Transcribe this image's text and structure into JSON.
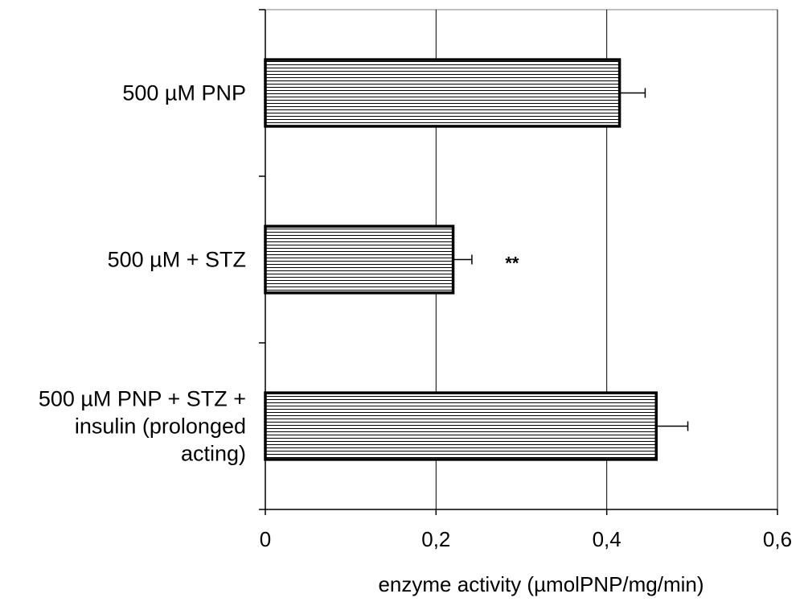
{
  "chart_data": {
    "type": "bar",
    "orientation": "horizontal",
    "categories": [
      [
        "500 µM PNP"
      ],
      [
        "500 µM + STZ"
      ],
      [
        "500 µM PNP + STZ +",
        "insulin (prolonged",
        "acting)"
      ]
    ],
    "values": [
      0.415,
      0.22,
      0.458
    ],
    "errors": [
      0.03,
      0.022,
      0.037
    ],
    "annotations": [
      "",
      "**",
      ""
    ],
    "xlabel": "enzyme activity (µmolPNP/mg/min)",
    "xlim": [
      0,
      0.6
    ],
    "xticks": [
      0,
      0.2,
      0.4,
      0.6
    ],
    "xtick_labels": [
      "0",
      "0,2",
      "0,4",
      "0,6"
    ],
    "grid": "vertical",
    "bar_fill": "horizontal-hatch",
    "colors": {
      "bar_stroke": "#000000",
      "hatch": "#000000",
      "grid": "#000000",
      "background": "#ffffff"
    }
  }
}
